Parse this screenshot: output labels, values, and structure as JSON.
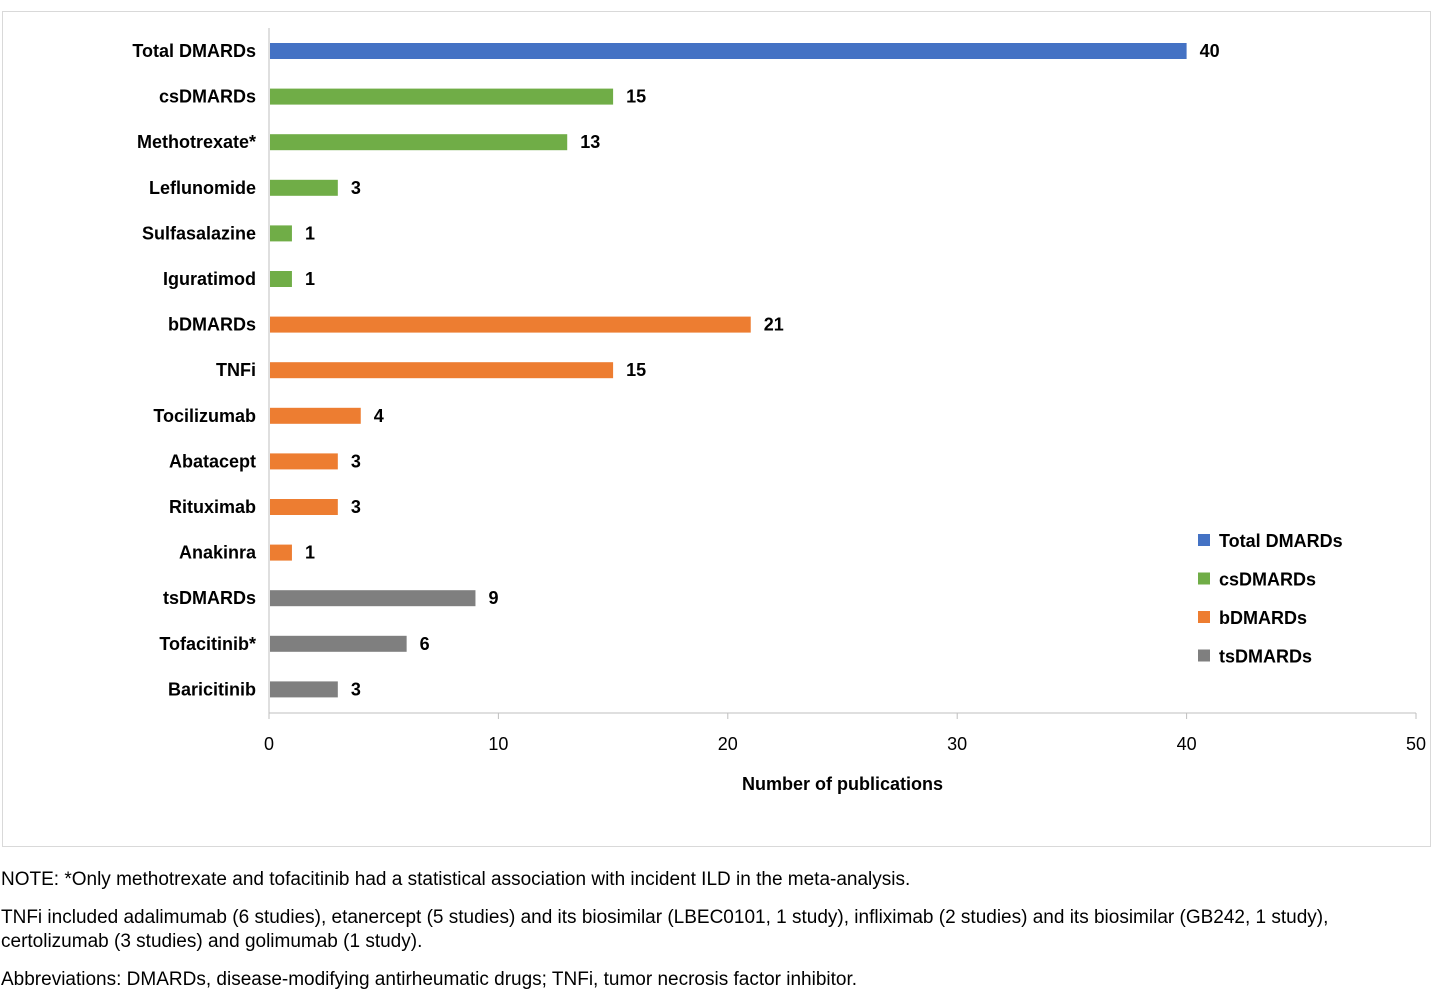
{
  "chart_data": {
    "type": "bar",
    "orientation": "horizontal",
    "categories": [
      "Total DMARDs",
      "csDMARDs",
      "Methotrexate*",
      "Leflunomide",
      "Sulfasalazine",
      "Iguratimod",
      "bDMARDs",
      "TNFi",
      "Tocilizumab",
      "Abatacept",
      "Rituximab",
      "Anakinra",
      "tsDMARDs",
      "Tofacitinib*",
      "Baricitinib"
    ],
    "values": [
      40,
      15,
      13,
      3,
      1,
      1,
      21,
      15,
      4,
      3,
      3,
      1,
      9,
      6,
      3
    ],
    "groups": [
      "Total DMARDs",
      "csDMARDs",
      "csDMARDs",
      "csDMARDs",
      "csDMARDs",
      "csDMARDs",
      "bDMARDs",
      "bDMARDs",
      "bDMARDs",
      "bDMARDs",
      "bDMARDs",
      "bDMARDs",
      "tsDMARDs",
      "tsDMARDs",
      "tsDMARDs"
    ],
    "xlabel": "Number of publications",
    "ylabel": "",
    "xlim": [
      0,
      50
    ],
    "xticks": [
      0,
      10,
      20,
      30,
      40,
      50
    ],
    "grid": false,
    "legend_position": "bottom-right",
    "legend": [
      {
        "name": "Total DMARDs",
        "color": "#4472c4"
      },
      {
        "name": "csDMARDs",
        "color": "#70ad47"
      },
      {
        "name": "bDMARDs",
        "color": "#ed7d31"
      },
      {
        "name": "tsDMARDs",
        "color": "#7f7f7f"
      }
    ],
    "group_colors": {
      "Total DMARDs": "#4472c4",
      "csDMARDs": "#70ad47",
      "bDMARDs": "#ed7d31",
      "tsDMARDs": "#7f7f7f"
    }
  },
  "notes": {
    "note1": "NOTE: *Only methotrexate and tofacitinib had a statistical association with incident ILD in the meta-analysis.",
    "note2": "TNFi included adalimumab (6 studies), etanercept (5 studies) and its biosimilar (LBEC0101, 1 study), infliximab (2 studies) and its biosimilar (GB242, 1 study), certolizumab (3 studies) and golimumab (1 study).",
    "note3": "Abbreviations: DMARDs, disease-modifying antirheumatic drugs; TNFi, tumor necrosis factor inhibitor."
  }
}
